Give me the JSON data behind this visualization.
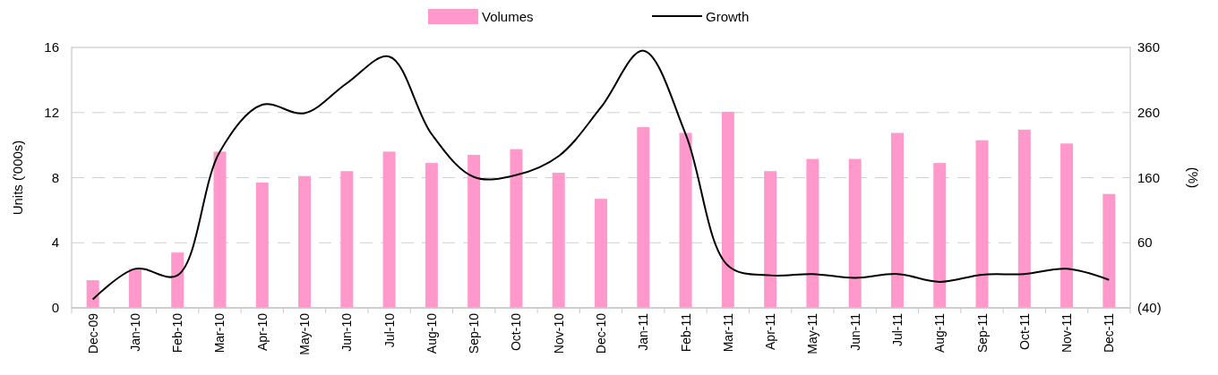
{
  "chart_data": {
    "type": "bar",
    "categories": [
      "Dec-09",
      "Jan-10",
      "Feb-10",
      "Mar-10",
      "Apr-10",
      "May-10",
      "Jun-10",
      "Jul-10",
      "Aug-10",
      "Sep-10",
      "Oct-10",
      "Nov-10",
      "Dec-10",
      "Jan-11",
      "Feb-11",
      "Mar-11",
      "Apr-11",
      "May-11",
      "Jun-11",
      "Jul-11",
      "Aug-11",
      "Sep-11",
      "Oct-11",
      "Nov-11",
      "Dec-11"
    ],
    "series": [
      {
        "name": "Volumes",
        "color": "#ff99cc",
        "values": [
          1.7,
          2.4,
          3.4,
          9.6,
          7.7,
          8.1,
          8.4,
          9.6,
          8.9,
          9.4,
          9.75,
          8.3,
          6.7,
          11.1,
          10.75,
          12.05,
          8.4,
          9.15,
          9.15,
          10.75,
          8.9,
          10.3,
          10.95,
          10.1,
          7.0
        ]
      },
      {
        "name": "Growth",
        "type": "line",
        "axis": "y2",
        "color": "#000000",
        "values": [
          -27,
          20,
          10,
          200,
          272,
          259,
          305,
          346,
          227,
          161,
          164,
          193,
          268,
          355,
          227,
          25,
          10,
          12,
          6,
          12,
          0,
          11,
          12,
          20,
          3
        ]
      }
    ],
    "ylabel": "Units ('000s)",
    "y2label": "(%)",
    "ylim": [
      0,
      16
    ],
    "yticks": [
      0,
      4,
      8,
      12,
      16
    ],
    "y2lim": [
      -40,
      360
    ],
    "y2ticks": [
      {
        "value": -40,
        "label": "(40)"
      },
      60,
      160,
      260,
      360
    ],
    "grid": "y",
    "legend": "top",
    "marker": "none",
    "line_style": "solid"
  }
}
